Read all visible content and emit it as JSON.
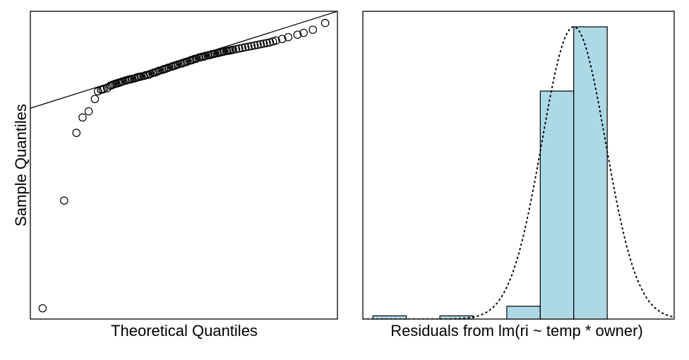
{
  "chart_data": [
    {
      "type": "scatter",
      "title": "",
      "xlabel": "Theoretical Quantiles",
      "ylabel": "Sample Quantiles",
      "axes_ticks": "none",
      "reference_line": {
        "x": [
          0.0,
          1.0
        ],
        "y": [
          0.685,
          1.0
        ]
      },
      "x": [
        0.04,
        0.11,
        0.15,
        0.17,
        0.19,
        0.21,
        0.22,
        0.23,
        0.235,
        0.24,
        0.25,
        0.26,
        0.265,
        0.27,
        0.275,
        0.28,
        0.285,
        0.29,
        0.295,
        0.3,
        0.31,
        0.315,
        0.32,
        0.325,
        0.33,
        0.34,
        0.345,
        0.35,
        0.355,
        0.36,
        0.37,
        0.375,
        0.38,
        0.385,
        0.39,
        0.4,
        0.405,
        0.41,
        0.415,
        0.42,
        0.43,
        0.435,
        0.44,
        0.445,
        0.45,
        0.46,
        0.465,
        0.47,
        0.475,
        0.48,
        0.49,
        0.495,
        0.5,
        0.505,
        0.51,
        0.52,
        0.525,
        0.53,
        0.535,
        0.54,
        0.55,
        0.555,
        0.56,
        0.565,
        0.57,
        0.58,
        0.585,
        0.59,
        0.595,
        0.6,
        0.61,
        0.615,
        0.62,
        0.625,
        0.63,
        0.64,
        0.645,
        0.65,
        0.655,
        0.66,
        0.67,
        0.68,
        0.69,
        0.7,
        0.71,
        0.72,
        0.73,
        0.74,
        0.75,
        0.76,
        0.77,
        0.78,
        0.79,
        0.8,
        0.82,
        0.84,
        0.87,
        0.89,
        0.92,
        0.96
      ],
      "y": [
        0.035,
        0.385,
        0.605,
        0.655,
        0.675,
        0.715,
        0.74,
        0.745,
        0.746,
        0.748,
        0.75,
        0.758,
        0.76,
        0.762,
        0.764,
        0.765,
        0.767,
        0.768,
        0.77,
        0.772,
        0.775,
        0.776,
        0.778,
        0.779,
        0.78,
        0.782,
        0.784,
        0.786,
        0.787,
        0.788,
        0.79,
        0.792,
        0.793,
        0.794,
        0.796,
        0.8,
        0.801,
        0.803,
        0.805,
        0.807,
        0.81,
        0.812,
        0.813,
        0.815,
        0.817,
        0.82,
        0.822,
        0.823,
        0.825,
        0.827,
        0.83,
        0.831,
        0.833,
        0.835,
        0.836,
        0.84,
        0.841,
        0.843,
        0.845,
        0.846,
        0.85,
        0.851,
        0.852,
        0.853,
        0.855,
        0.857,
        0.858,
        0.86,
        0.861,
        0.862,
        0.864,
        0.866,
        0.867,
        0.868,
        0.869,
        0.871,
        0.872,
        0.873,
        0.874,
        0.875,
        0.877,
        0.879,
        0.881,
        0.883,
        0.885,
        0.887,
        0.889,
        0.891,
        0.893,
        0.895,
        0.897,
        0.899,
        0.902,
        0.905,
        0.91,
        0.916,
        0.924,
        0.93,
        0.94,
        0.962
      ]
    },
    {
      "type": "bar",
      "title": "",
      "xlabel": "Residuals from lm(ri ~ temp * owner)",
      "ylabel": "",
      "axes_ticks": "none",
      "fill_color": "#add8e6",
      "edges": [
        0,
        1,
        2,
        3,
        4,
        5,
        6,
        7,
        8,
        9
      ],
      "values": [
        1,
        0,
        1,
        0,
        4,
        71,
        91,
        0,
        0
      ],
      "ylim": [
        0,
        91
      ],
      "xlim": [
        -0.3,
        9.0
      ],
      "density_curve": {
        "style": "dotted",
        "mean": 6.0,
        "sd": 0.95
      }
    }
  ]
}
